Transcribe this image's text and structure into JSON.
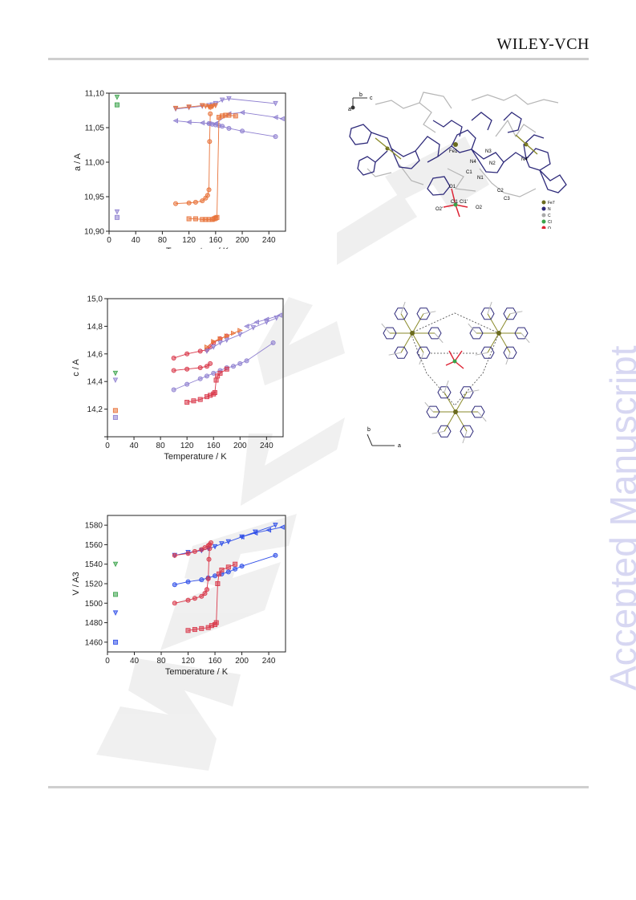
{
  "header": {
    "publisher": "WILEY-VCH"
  },
  "watermark": {
    "side_text": "Accepted Manuscript",
    "diagonal_text": "WILEY-VCH"
  },
  "colors": {
    "orange": "#e8733a",
    "red": "#d9384a",
    "violet": "#8e7fd0",
    "blue": "#2f4ee8",
    "green": "#3aa34a",
    "navy": "#2e2a7a",
    "grey_bond": "#b0b0b0"
  },
  "chart_data": [
    {
      "type": "line",
      "title": "",
      "xlabel": "Temperature / K",
      "ylabel": "a / A",
      "xlim": [
        0,
        265
      ],
      "ylim": [
        10.9,
        11.1
      ],
      "xticks": [
        0,
        40,
        80,
        120,
        160,
        200,
        240
      ],
      "yticks": [
        10.9,
        10.95,
        11.0,
        11.05,
        11.1
      ],
      "ytick_labels": [
        "10,90",
        "10,95",
        "11,00",
        "11,05",
        "11,10"
      ],
      "series": [
        {
          "color": "violet",
          "marker": "triangle-down",
          "x": [
            100,
            120,
            140,
            150,
            155,
            160,
            170,
            180,
            250
          ],
          "y": [
            11.077,
            11.079,
            11.081,
            11.082,
            11.083,
            11.085,
            11.09,
            11.092,
            11.085
          ]
        },
        {
          "color": "orange",
          "marker": "triangle-down",
          "x": [
            100,
            120,
            140,
            145,
            150,
            152,
            154,
            156,
            160
          ],
          "y": [
            11.078,
            11.08,
            11.082,
            11.081,
            11.08,
            11.079,
            11.08,
            11.081,
            11.082
          ]
        },
        {
          "color": "violet",
          "marker": "triangle-left",
          "x": [
            100,
            120,
            140,
            150,
            160,
            180,
            200,
            250,
            260
          ],
          "y": [
            11.06,
            11.058,
            11.057,
            11.056,
            11.056,
            11.07,
            11.072,
            11.065,
            11.063
          ]
        },
        {
          "color": "orange",
          "marker": "circle",
          "x": [
            100,
            120,
            130,
            140,
            145,
            148,
            150,
            151,
            152
          ],
          "y": [
            10.94,
            10.941,
            10.942,
            10.944,
            10.948,
            10.952,
            10.96,
            11.03,
            11.07
          ]
        },
        {
          "color": "violet",
          "marker": "circle",
          "x": [
            150,
            155,
            160,
            165,
            170,
            180,
            200,
            250
          ],
          "y": [
            11.056,
            11.055,
            11.054,
            11.053,
            11.052,
            11.049,
            11.045,
            11.037
          ]
        },
        {
          "color": "orange",
          "marker": "square",
          "x": [
            120,
            130,
            140,
            145,
            150,
            155,
            158,
            160,
            162,
            165,
            170,
            175,
            180,
            190
          ],
          "y": [
            10.918,
            10.918,
            10.917,
            10.917,
            10.917,
            10.917,
            10.918,
            10.919,
            10.92,
            11.065,
            11.067,
            11.068,
            11.068,
            11.067
          ]
        },
        {
          "color": "green",
          "marker": "triangle-down",
          "x": [
            12
          ],
          "y": [
            11.094
          ]
        },
        {
          "color": "green",
          "marker": "square",
          "x": [
            12
          ],
          "y": [
            11.083
          ]
        },
        {
          "color": "violet",
          "marker": "triangle-down",
          "x": [
            12
          ],
          "y": [
            10.928
          ]
        },
        {
          "color": "violet",
          "marker": "square",
          "x": [
            12
          ],
          "y": [
            10.92
          ]
        }
      ]
    },
    {
      "type": "line",
      "title": "",
      "xlabel": "Temperature / K",
      "ylabel": "c / A",
      "xlim": [
        0,
        265
      ],
      "ylim": [
        14.0,
        15.0
      ],
      "xticks": [
        0,
        40,
        80,
        120,
        160,
        200,
        240
      ],
      "yticks": [
        14.0,
        14.2,
        14.4,
        14.6,
        14.8,
        15.0
      ],
      "ytick_labels": [
        "",
        "14,2",
        "14,4",
        "14,6",
        "14,8",
        "15,0"
      ],
      "series": [
        {
          "color": "red",
          "marker": "circle",
          "x": [
            100,
            120,
            140,
            150,
            155,
            160,
            170,
            180
          ],
          "y": [
            14.57,
            14.6,
            14.62,
            14.63,
            14.65,
            14.68,
            14.71,
            14.73
          ]
        },
        {
          "color": "red",
          "marker": "circle",
          "x": [
            100,
            120,
            140,
            150,
            155
          ],
          "y": [
            14.48,
            14.49,
            14.5,
            14.51,
            14.53
          ]
        },
        {
          "color": "violet",
          "marker": "triangle-down",
          "x": [
            150,
            160,
            170,
            180,
            200,
            220,
            240,
            255
          ],
          "y": [
            14.62,
            14.65,
            14.68,
            14.7,
            14.74,
            14.79,
            14.83,
            14.86
          ]
        },
        {
          "color": "orange",
          "marker": "triangle-right",
          "x": [
            150,
            160,
            170,
            180,
            190,
            200
          ],
          "y": [
            14.65,
            14.69,
            14.71,
            14.73,
            14.75,
            14.77
          ]
        },
        {
          "color": "violet",
          "marker": "triangle-left",
          "x": [
            210,
            225,
            240,
            260
          ],
          "y": [
            14.8,
            14.83,
            14.85,
            14.88
          ]
        },
        {
          "color": "violet",
          "marker": "circle",
          "x": [
            100,
            120,
            140,
            150,
            160,
            170,
            180,
            190,
            200,
            210,
            250
          ],
          "y": [
            14.34,
            14.38,
            14.42,
            14.44,
            14.46,
            14.48,
            14.5,
            14.51,
            14.53,
            14.55,
            14.68
          ]
        },
        {
          "color": "red",
          "marker": "square",
          "x": [
            120,
            130,
            140,
            150,
            155,
            160,
            162,
            164,
            166,
            170,
            180
          ],
          "y": [
            14.25,
            14.26,
            14.27,
            14.29,
            14.3,
            14.31,
            14.32,
            14.41,
            14.44,
            14.46,
            14.49
          ]
        },
        {
          "color": "green",
          "marker": "triangle-down",
          "x": [
            12
          ],
          "y": [
            14.46
          ]
        },
        {
          "color": "violet",
          "marker": "triangle-down",
          "x": [
            12
          ],
          "y": [
            14.41
          ]
        },
        {
          "color": "orange",
          "marker": "square",
          "x": [
            12
          ],
          "y": [
            14.19
          ]
        },
        {
          "color": "violet",
          "marker": "square",
          "x": [
            12
          ],
          "y": [
            14.14
          ]
        }
      ]
    },
    {
      "type": "line",
      "title": "",
      "xlabel": "Temperature / K",
      "ylabel": "V / A3",
      "xlim": [
        0,
        265
      ],
      "ylim": [
        1450,
        1590
      ],
      "xticks": [
        0,
        40,
        80,
        120,
        160,
        200,
        240
      ],
      "yticks": [
        1460,
        1480,
        1500,
        1520,
        1540,
        1560,
        1580
      ],
      "ytick_labels": [
        "1460",
        "1480",
        "1500",
        "1520",
        "1540",
        "1560",
        "1580"
      ],
      "series": [
        {
          "color": "blue",
          "marker": "triangle-down",
          "x": [
            100,
            120,
            140,
            150,
            160,
            170,
            180,
            200,
            220,
            250
          ],
          "y": [
            1549,
            1552,
            1554,
            1556,
            1558,
            1561,
            1563,
            1568,
            1573,
            1580
          ]
        },
        {
          "color": "red",
          "marker": "circle",
          "x": [
            100,
            120,
            130,
            140,
            145,
            150,
            152,
            154
          ],
          "y": [
            1549,
            1551,
            1553,
            1555,
            1557,
            1559,
            1560,
            1562
          ]
        },
        {
          "color": "blue",
          "marker": "triangle-left",
          "x": [
            200,
            220,
            240,
            260
          ],
          "y": [
            1568,
            1572,
            1575,
            1578
          ]
        },
        {
          "color": "blue",
          "marker": "circle",
          "x": [
            100,
            120,
            140,
            150,
            160,
            170,
            180,
            190,
            200,
            250
          ],
          "y": [
            1519,
            1522,
            1524,
            1526,
            1528,
            1530,
            1532,
            1535,
            1538,
            1549
          ]
        },
        {
          "color": "red",
          "marker": "circle",
          "x": [
            100,
            120,
            130,
            140,
            145,
            148,
            150,
            151,
            152
          ],
          "y": [
            1500,
            1503,
            1505,
            1507,
            1510,
            1514,
            1525,
            1545,
            1556
          ]
        },
        {
          "color": "red",
          "marker": "square",
          "x": [
            120,
            130,
            140,
            150,
            155,
            160,
            162,
            164,
            166,
            170,
            180,
            190
          ],
          "y": [
            1472,
            1473,
            1474,
            1475,
            1477,
            1478,
            1480,
            1520,
            1530,
            1534,
            1537,
            1540
          ]
        },
        {
          "color": "green",
          "marker": "triangle-down",
          "x": [
            12
          ],
          "y": [
            1540
          ]
        },
        {
          "color": "green",
          "marker": "square",
          "x": [
            12
          ],
          "y": [
            1509
          ]
        },
        {
          "color": "blue",
          "marker": "triangle-down",
          "x": [
            12
          ],
          "y": [
            1490
          ]
        },
        {
          "color": "blue",
          "marker": "square",
          "x": [
            12
          ],
          "y": [
            1460
          ]
        }
      ]
    }
  ],
  "structures": {
    "top": {
      "axes": {
        "b": "b",
        "c": "c",
        "a": "a"
      },
      "atom_labels": [
        "Fe1",
        "N3",
        "N4",
        "N2",
        "C1",
        "N1",
        "C2",
        "C3",
        "N4'",
        "O1",
        "Cl1",
        "Cl1'",
        "O2",
        "O2'"
      ],
      "legend": [
        "Fe7",
        "N",
        "C",
        "Cl",
        "O"
      ]
    },
    "bottom": {
      "axes": {
        "b": "b",
        "a": "a"
      }
    }
  }
}
